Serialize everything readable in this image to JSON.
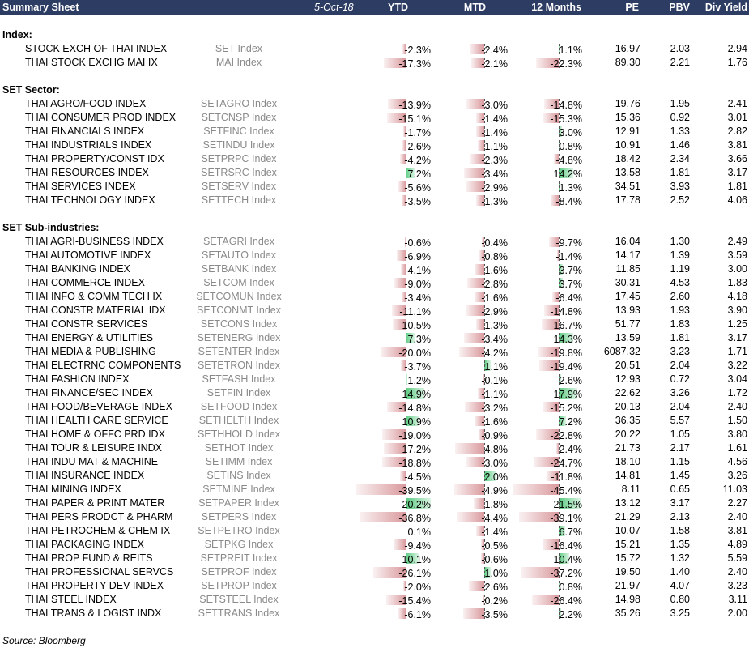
{
  "header": {
    "title": "Summary Sheet",
    "date": "5-Oct-18",
    "col_ytd": "YTD",
    "col_mtd": "MTD",
    "col_12m": "12 Months",
    "col_pe": "PE",
    "col_pbv": "PBV",
    "col_div": "Div Yield"
  },
  "colors": {
    "header_bg": "#2c3c63",
    "negative_bar": "#cd787d",
    "positive_bar": "#50c878",
    "ticker_text": "#8a8a8a"
  },
  "sections": [
    {
      "title": "Index:",
      "rows": [
        {
          "name": "STOCK EXCH OF THAI INDEX",
          "ticker": "SET Index",
          "ytd": "-2.3%",
          "mtd": "-2.4%",
          "m12": "1.1%",
          "pe": "16.97",
          "pbv": "2.03",
          "dy": "2.94"
        },
        {
          "name": "THAI STOCK EXCHG MAI IX",
          "ticker": "MAI Index",
          "ytd": "-17.3%",
          "mtd": "-2.1%",
          "m12": "-22.3%",
          "pe": "89.30",
          "pbv": "2.21",
          "dy": "1.76"
        }
      ]
    },
    {
      "title": "SET Sector:",
      "rows": [
        {
          "name": "THAI AGRO/FOOD INDEX",
          "ticker": "SETAGRO Index",
          "ytd": "-13.9%",
          "mtd": "-3.0%",
          "m12": "-14.8%",
          "pe": "19.76",
          "pbv": "1.95",
          "dy": "2.41"
        },
        {
          "name": "THAI CONSUMER PROD INDEX",
          "ticker": "SETCNSP Index",
          "ytd": "-15.1%",
          "mtd": "-1.4%",
          "m12": "-15.3%",
          "pe": "15.36",
          "pbv": "0.92",
          "dy": "3.01"
        },
        {
          "name": "THAI FINANCIALS INDEX",
          "ticker": "SETFINC Index",
          "ytd": "-1.7%",
          "mtd": "-1.4%",
          "m12": "3.0%",
          "pe": "12.91",
          "pbv": "1.33",
          "dy": "2.82"
        },
        {
          "name": "THAI INDUSTRIALS INDEX",
          "ticker": "SETINDU Index",
          "ytd": "-2.6%",
          "mtd": "-1.1%",
          "m12": "0.8%",
          "pe": "10.91",
          "pbv": "1.46",
          "dy": "3.81"
        },
        {
          "name": "THAI PROPERTY/CONST IDX",
          "ticker": "SETPRPC Index",
          "ytd": "-4.2%",
          "mtd": "-2.3%",
          "m12": "-4.8%",
          "pe": "18.42",
          "pbv": "2.34",
          "dy": "3.66"
        },
        {
          "name": "THAI RESOURCES INDEX",
          "ticker": "SETRSRC Index",
          "ytd": "7.2%",
          "mtd": "-3.4%",
          "m12": "14.2%",
          "pe": "13.58",
          "pbv": "1.81",
          "dy": "3.17"
        },
        {
          "name": "THAI SERVICES INDEX",
          "ticker": "SETSERV Index",
          "ytd": "-5.6%",
          "mtd": "-2.9%",
          "m12": "1.3%",
          "pe": "34.51",
          "pbv": "3.93",
          "dy": "1.81"
        },
        {
          "name": "THAI TECHNOLOGY INDEX",
          "ticker": "SETTECH Index",
          "ytd": "-3.5%",
          "mtd": "-1.3%",
          "m12": "-8.4%",
          "pe": "17.78",
          "pbv": "2.52",
          "dy": "4.06"
        }
      ]
    },
    {
      "title": "SET Sub-industries:",
      "rows": [
        {
          "name": "THAI AGRI-BUSINESS INDEX",
          "ticker": "SETAGRI Index",
          "ytd": "-0.6%",
          "mtd": "-0.4%",
          "m12": "-9.7%",
          "pe": "16.04",
          "pbv": "1.30",
          "dy": "2.49"
        },
        {
          "name": "THAI AUTOMOTIVE INDEX",
          "ticker": "SETAUTO Index",
          "ytd": "-6.9%",
          "mtd": "-0.8%",
          "m12": "-1.4%",
          "pe": "14.17",
          "pbv": "1.39",
          "dy": "3.59"
        },
        {
          "name": "THAI BANKING INDEX",
          "ticker": "SETBANK Index",
          "ytd": "-4.1%",
          "mtd": "-1.6%",
          "m12": "3.7%",
          "pe": "11.85",
          "pbv": "1.19",
          "dy": "3.00"
        },
        {
          "name": "THAI COMMERCE INDEX",
          "ticker": "SETCOM Index",
          "ytd": "-9.0%",
          "mtd": "-2.8%",
          "m12": "3.7%",
          "pe": "30.31",
          "pbv": "4.53",
          "dy": "1.83"
        },
        {
          "name": "THAI INFO & COMM TECH IX",
          "ticker": "SETCOMUN Index",
          "ytd": "-3.4%",
          "mtd": "-1.6%",
          "m12": "-6.4%",
          "pe": "17.45",
          "pbv": "2.60",
          "dy": "4.18"
        },
        {
          "name": "THAI CONSTR MATERIAL IDX",
          "ticker": "SETCONMT Index",
          "ytd": "-11.1%",
          "mtd": "-2.9%",
          "m12": "-14.8%",
          "pe": "13.93",
          "pbv": "1.93",
          "dy": "3.90"
        },
        {
          "name": "THAI CONSTR SERVICES",
          "ticker": "SETCONS Index",
          "ytd": "-10.5%",
          "mtd": "-1.3%",
          "m12": "-16.7%",
          "pe": "51.77",
          "pbv": "1.83",
          "dy": "1.25"
        },
        {
          "name": "THAI ENERGY & UTILITIES",
          "ticker": "SETENERG Index",
          "ytd": "7.3%",
          "mtd": "-3.4%",
          "m12": "14.3%",
          "pe": "13.59",
          "pbv": "1.81",
          "dy": "3.17"
        },
        {
          "name": "THAI MEDIA & PUBLISHING",
          "ticker": "SETENTER Index",
          "ytd": "-20.0%",
          "mtd": "-4.2%",
          "m12": "-19.8%",
          "pe": "6087.32",
          "pbv": "3.23",
          "dy": "1.71"
        },
        {
          "name": "THAI ELECTRNC COMPONENTS",
          "ticker": "SETETRON Index",
          "ytd": "-3.7%",
          "mtd": "1.1%",
          "m12": "-19.4%",
          "pe": "20.51",
          "pbv": "2.04",
          "dy": "3.22"
        },
        {
          "name": "THAI FASHION INDEX",
          "ticker": "SETFASH Index",
          "ytd": "1.2%",
          "mtd": "-0.1%",
          "m12": "2.6%",
          "pe": "12.93",
          "pbv": "0.72",
          "dy": "3.04"
        },
        {
          "name": "THAI FINANCE/SEC INDEX",
          "ticker": "SETFIN Index",
          "ytd": "14.9%",
          "mtd": "-1.1%",
          "m12": "17.9%",
          "pe": "22.62",
          "pbv": "3.26",
          "dy": "1.72"
        },
        {
          "name": "THAI FOOD/BEVERAGE INDEX",
          "ticker": "SETFOOD Index",
          "ytd": "-14.8%",
          "mtd": "-3.2%",
          "m12": "-15.2%",
          "pe": "20.13",
          "pbv": "2.04",
          "dy": "2.40"
        },
        {
          "name": "THAI HEALTH CARE SERVICE",
          "ticker": "SETHELTH Index",
          "ytd": "10.9%",
          "mtd": "-1.6%",
          "m12": "7.2%",
          "pe": "36.35",
          "pbv": "5.57",
          "dy": "1.50"
        },
        {
          "name": "THAI HOME & OFFC PRD IDX",
          "ticker": "SETHHOLD Index",
          "ytd": "-19.0%",
          "mtd": "-0.9%",
          "m12": "-22.8%",
          "pe": "20.22",
          "pbv": "1.05",
          "dy": "3.80"
        },
        {
          "name": "THAI TOUR & LEISURE INDX",
          "ticker": "SETHOT Index",
          "ytd": "-17.2%",
          "mtd": "-4.8%",
          "m12": "-2.4%",
          "pe": "21.73",
          "pbv": "2.17",
          "dy": "1.61"
        },
        {
          "name": "THAI INDU MAT & MACHINE",
          "ticker": "SETIMM Index",
          "ytd": "-18.8%",
          "mtd": "-3.0%",
          "m12": "-24.7%",
          "pe": "18.10",
          "pbv": "1.15",
          "dy": "4.56"
        },
        {
          "name": "THAI INSURANCE INDEX",
          "ticker": "SETINS Index",
          "ytd": "-4.5%",
          "mtd": "2.0%",
          "m12": "-11.8%",
          "pe": "14.81",
          "pbv": "1.45",
          "dy": "3.26"
        },
        {
          "name": "THAI MINING INDEX",
          "ticker": "SETMINE Index",
          "ytd": "-39.5%",
          "mtd": "-4.9%",
          "m12": "-45.4%",
          "pe": "8.11",
          "pbv": "0.65",
          "dy": "11.03"
        },
        {
          "name": "THAI PAPER & PRINT MATER",
          "ticker": "SETPAPER Index",
          "ytd": "20.2%",
          "mtd": "-1.8%",
          "m12": "21.5%",
          "pe": "13.12",
          "pbv": "3.17",
          "dy": "2.27"
        },
        {
          "name": "THAI PERS PRODCT & PHARM",
          "ticker": "SETPERS Index",
          "ytd": "-36.8%",
          "mtd": "-4.4%",
          "m12": "-39.1%",
          "pe": "21.29",
          "pbv": "2.13",
          "dy": "2.40"
        },
        {
          "name": "THAI PETROCHEM & CHEM IX",
          "ticker": "SETPETRO Index",
          "ytd": "0.1%",
          "mtd": "-1.4%",
          "m12": "6.7%",
          "pe": "10.07",
          "pbv": "1.58",
          "dy": "3.81"
        },
        {
          "name": "THAI PACKAGING INDEX",
          "ticker": "SETPKG Index",
          "ytd": "-9.4%",
          "mtd": "-0.5%",
          "m12": "-16.4%",
          "pe": "15.21",
          "pbv": "1.35",
          "dy": "4.89"
        },
        {
          "name": "THAI PROP FUND & REITS",
          "ticker": "SETPREIT Index",
          "ytd": "10.1%",
          "mtd": "-0.6%",
          "m12": "10.4%",
          "pe": "15.72",
          "pbv": "1.32",
          "dy": "5.59"
        },
        {
          "name": "THAI PROFESSIONAL SERVCS",
          "ticker": "SETPROF Index",
          "ytd": "-26.1%",
          "mtd": "1.0%",
          "m12": "-37.2%",
          "pe": "19.50",
          "pbv": "1.40",
          "dy": "2.40"
        },
        {
          "name": "THAI PROPERTY DEV INDEX",
          "ticker": "SETPROP Index",
          "ytd": "-2.0%",
          "mtd": "-2.6%",
          "m12": "0.8%",
          "pe": "21.97",
          "pbv": "4.07",
          "dy": "3.23"
        },
        {
          "name": "THAI STEEL INDEX",
          "ticker": "SETSTEEL Index",
          "ytd": "-15.4%",
          "mtd": "-0.2%",
          "m12": "-26.4%",
          "pe": "14.98",
          "pbv": "0.80",
          "dy": "3.11"
        },
        {
          "name": "THAI TRANS & LOGIST INDX",
          "ticker": "SETTRANS Index",
          "ytd": "-6.1%",
          "mtd": "-3.5%",
          "m12": "2.2%",
          "pe": "35.26",
          "pbv": "3.25",
          "dy": "2.00"
        }
      ]
    }
  ],
  "source": "Source: Bloomberg"
}
